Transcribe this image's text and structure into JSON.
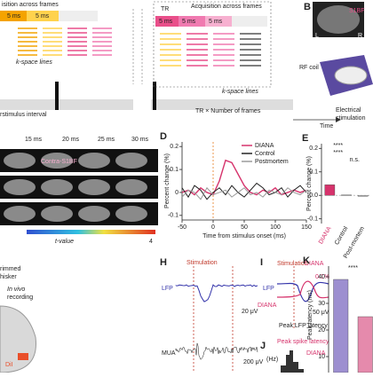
{
  "panels": {
    "A": {
      "title_left": "isition across frames",
      "title_right": "Acquisition across frames",
      "tr": "TR",
      "box_left": [
        "5 ms",
        "5 ms"
      ],
      "box_right": [
        "5 ms",
        "5 ms",
        "5 ms"
      ],
      "kspace_left": "k-space lines",
      "kspace_right": "k-space lines",
      "interval": "rstimulus interval",
      "frames": "TR × Number of frames",
      "time": "Time"
    },
    "B": {
      "label": "B",
      "region": "S1BF",
      "coil": "RF coil",
      "stim1": "Electrical",
      "stim2": "stimulation",
      "l": "L",
      "r": "R"
    },
    "C": {
      "times": [
        "15 ms",
        "20 ms",
        "25 ms",
        "30 ms"
      ],
      "region": "Contra-S1BF",
      "colorbar_label": "t-value",
      "colorbar_max": "4"
    },
    "G": {
      "trimmed": "rimmed",
      "whisker": "hisker",
      "invivo": "In vivo",
      "recording": "recording",
      "dil": "DiI"
    },
    "H": {
      "label": "H",
      "stim": "Stimulation",
      "lfp": "LFP",
      "mua": "MUA",
      "scale1": "20 μV",
      "scale2": "200 μV"
    },
    "I": {
      "label": "I",
      "stim": "Stimulation",
      "diana": "DIANA",
      "lfp": "LFP",
      "diana2": "DIANA",
      "peak": "Peak LFP latency",
      "pct": "0.1%",
      "uv": "50 μV"
    },
    "J": {
      "label": "J",
      "peak": "Peak spike latency",
      "diana": "DIANA",
      "hz": "(Hz)"
    }
  },
  "chart_data": [
    {
      "type": "line",
      "label": "D",
      "xlabel": "Time from stimulus onset (ms)",
      "ylabel": "Percent change (%)",
      "x": [
        -50,
        -40,
        -30,
        -20,
        -10,
        0,
        10,
        20,
        30,
        40,
        50,
        60,
        70,
        80,
        90,
        100,
        110,
        120,
        130,
        140,
        150
      ],
      "series": [
        {
          "name": "DIANA",
          "color": "#d6336c",
          "values": [
            0,
            0.01,
            -0.01,
            0.02,
            0,
            -0.01,
            0.05,
            0.14,
            0.13,
            0.08,
            0.03,
            0,
            -0.01,
            0.01,
            0,
            0.02,
            -0.01,
            0,
            0.01,
            0,
            0.01
          ]
        },
        {
          "name": "Control",
          "color": "#222222",
          "values": [
            0.02,
            -0.02,
            0.03,
            0.01,
            -0.03,
            0,
            0.02,
            -0.01,
            0.03,
            0,
            -0.02,
            0.01,
            0.04,
            0.02,
            -0.01,
            0,
            0.02,
            -0.02,
            0.01,
            0.03,
            0
          ]
        },
        {
          "name": "Postmortem",
          "color": "#9a9a9a",
          "values": [
            -0.02,
            0.01,
            0,
            -0.03,
            0.02,
            -0.01,
            0,
            0.01,
            -0.02,
            0,
            0.02,
            -0.01,
            0,
            -0.02,
            0.01,
            0,
            -0.01,
            0.02,
            0,
            -0.01,
            0.01
          ]
        }
      ],
      "xlim": [
        -50,
        150
      ],
      "xticks": [
        -50,
        0,
        50,
        100,
        150
      ],
      "ylim": [
        -0.12,
        0.22
      ],
      "yticks": [
        -0.1,
        0,
        0.1,
        0.2
      ]
    },
    {
      "type": "bar",
      "label": "E",
      "ylabel": "Percent change (%)",
      "categories": [
        "DIANA",
        "Control",
        "Post-mortem"
      ],
      "values": [
        0.045,
        0.002,
        -0.004
      ],
      "colors": [
        "#d6336c",
        "#cccccc",
        "#cccccc"
      ],
      "ylim": [
        -0.12,
        0.22
      ],
      "yticks": [
        {
          "value": -0.1,
          "label": "-0.1"
        },
        {
          "value": 0,
          "label": "0.0"
        },
        0.1,
        0.2
      ],
      "annotations": [
        "****",
        "****",
        "n.s."
      ]
    },
    {
      "type": "bar",
      "label": "K",
      "ylabel": "Peak latency (ms)",
      "values": [
        39,
        25
      ],
      "colors": [
        "#9d8fd0",
        "#e58aac"
      ],
      "ylim": [
        4,
        44
      ],
      "yticks": [
        10,
        20,
        30,
        40
      ],
      "annotations": [
        "****"
      ]
    }
  ]
}
